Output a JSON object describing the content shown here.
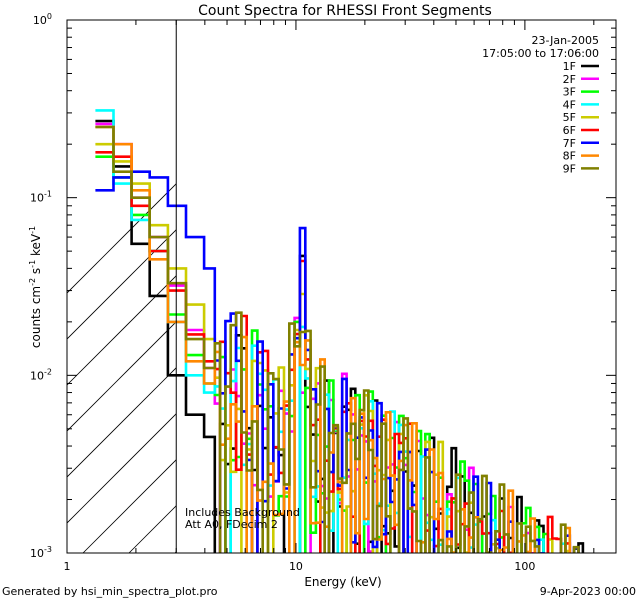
{
  "chart_data": {
    "type": "line",
    "title": "Count Spectra for RHESSI Front Segments",
    "xlabel": "Energy (keV)",
    "ylabel_main": "counts cm",
    "ylabel_sup1": "-2",
    "ylabel_mid": " s",
    "ylabel_sup2": "-1",
    "ylabel_end": " keV",
    "ylabel_sup3": "-1",
    "xscale": "log",
    "yscale": "log",
    "xlim": [
      1,
      250
    ],
    "ylim": [
      0.001,
      1
    ],
    "attenuator_shade_max_keV": 3,
    "x_ticks": [
      {
        "v": 1,
        "label": "1"
      },
      {
        "v": 10,
        "label": "10"
      },
      {
        "v": 100,
        "label": "100"
      }
    ],
    "y_ticks": [
      {
        "v": 1,
        "base": "10",
        "exp": "0"
      },
      {
        "v": 0.1,
        "base": "10",
        "exp": "-1"
      },
      {
        "v": 0.01,
        "base": "10",
        "exp": "-2"
      },
      {
        "v": 0.001,
        "base": "10",
        "exp": "-3"
      }
    ],
    "date": "23-Jan-2005",
    "time_range": "17:05:00 to 17:06:00",
    "notes": [
      "Includes Background",
      "Att A0, FDecim 2"
    ],
    "footer_left": "Generated by hsi_min_spectra_plot.pro",
    "footer_right": "9-Apr-2023 00:00",
    "series": [
      {
        "name": "1F",
        "color": "#000000"
      },
      {
        "name": "2F",
        "color": "#ff00ff"
      },
      {
        "name": "3F",
        "color": "#00ff00"
      },
      {
        "name": "4F",
        "color": "#00ffff"
      },
      {
        "name": "5F",
        "color": "#cccc00"
      },
      {
        "name": "6F",
        "color": "#ff0000"
      },
      {
        "name": "7F",
        "color": "#0000ff"
      },
      {
        "name": "8F",
        "color": "#ff8800"
      },
      {
        "name": "9F",
        "color": "#808000"
      }
    ]
  }
}
